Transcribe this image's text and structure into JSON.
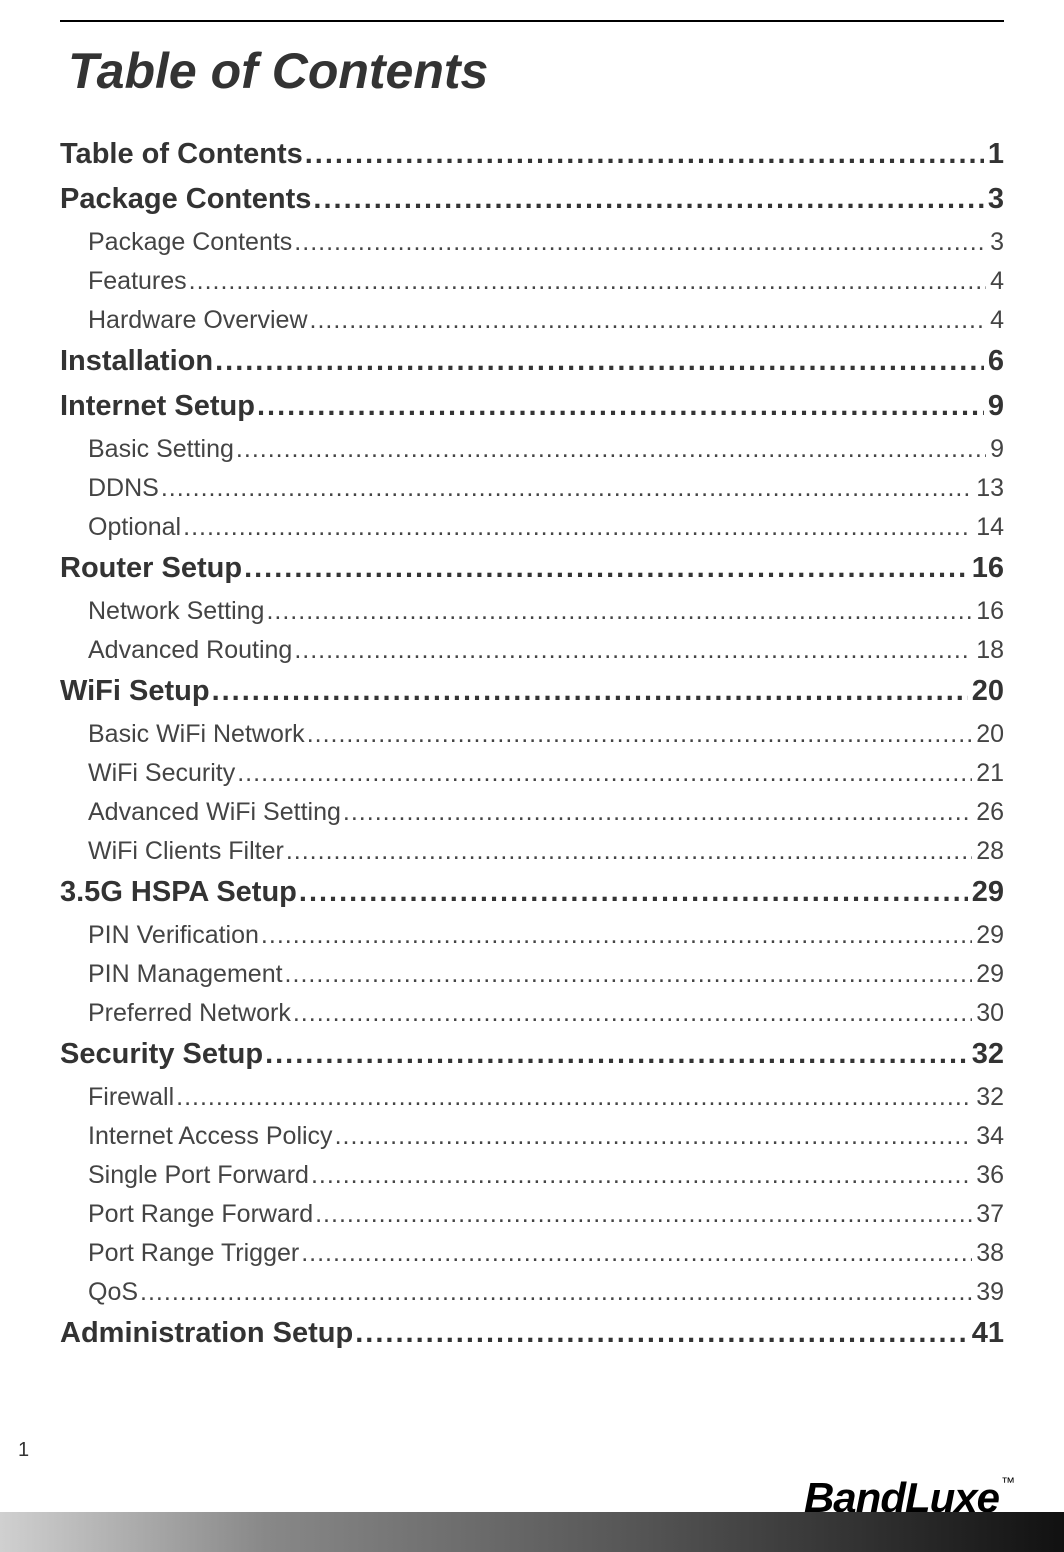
{
  "title": "Table of Contents",
  "page_number": "1",
  "logo": {
    "text": "BandLuxe",
    "tm": "™"
  },
  "toc": [
    {
      "level": 1,
      "label": "Table of Contents",
      "page": "1"
    },
    {
      "level": 1,
      "label": "Package Contents",
      "page": "3"
    },
    {
      "level": 2,
      "label": "Package Contents",
      "page": "3"
    },
    {
      "level": 2,
      "label": "Features",
      "page": "4"
    },
    {
      "level": 2,
      "label": "Hardware Overview",
      "page": "4"
    },
    {
      "level": 1,
      "label": "Installation",
      "page": "6"
    },
    {
      "level": 1,
      "label": "Internet Setup",
      "page": "9"
    },
    {
      "level": 2,
      "label": "Basic Setting",
      "page": "9"
    },
    {
      "level": 2,
      "label": "DDNS",
      "page": "13"
    },
    {
      "level": 2,
      "label": "Optional",
      "page": "14"
    },
    {
      "level": 1,
      "label": "Router Setup",
      "page": "16"
    },
    {
      "level": 2,
      "label": "Network Setting",
      "page": "16"
    },
    {
      "level": 2,
      "label": "Advanced Routing",
      "page": "18"
    },
    {
      "level": 1,
      "label": "WiFi Setup",
      "page": "20"
    },
    {
      "level": 2,
      "label": "Basic WiFi Network",
      "page": "20"
    },
    {
      "level": 2,
      "label": "WiFi Security",
      "page": "21"
    },
    {
      "level": 2,
      "label": "Advanced WiFi Setting",
      "page": "26"
    },
    {
      "level": 2,
      "label": "WiFi Clients Filter",
      "page": "28"
    },
    {
      "level": 1,
      "label": "3.5G HSPA Setup",
      "page": "29"
    },
    {
      "level": 2,
      "label": "PIN Verification",
      "page": "29"
    },
    {
      "level": 2,
      "label": "PIN Management",
      "page": "29"
    },
    {
      "level": 2,
      "label": "Preferred Network",
      "page": "30"
    },
    {
      "level": 1,
      "label": "Security Setup",
      "page": "32"
    },
    {
      "level": 2,
      "label": "Firewall",
      "page": "32"
    },
    {
      "level": 2,
      "label": "Internet Access Policy",
      "page": "34"
    },
    {
      "level": 2,
      "label": "Single Port Forward",
      "page": "36"
    },
    {
      "level": 2,
      "label": "Port Range Forward",
      "page": "37"
    },
    {
      "level": 2,
      "label": "Port Range Trigger",
      "page": "38"
    },
    {
      "level": 2,
      "label": "QoS",
      "page": "39"
    },
    {
      "level": 1,
      "label": "Administration Setup",
      "page": "41"
    }
  ]
}
